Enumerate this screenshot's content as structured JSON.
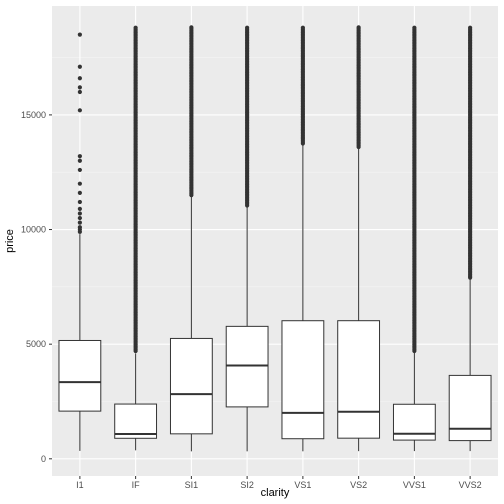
{
  "chart_data": {
    "type": "boxplot",
    "title": "",
    "xlabel": "clarity",
    "ylabel": "price",
    "categories": [
      "I1",
      "IF",
      "SI1",
      "SI2",
      "VS1",
      "VS2",
      "VVS1",
      "VVS2"
    ],
    "ylim": [
      -750,
      19750
    ],
    "yticks": [
      0,
      5000,
      10000,
      15000
    ],
    "grid": true,
    "legend": "none",
    "boxes": [
      {
        "category": "I1",
        "lower_whisker": 345,
        "q1": 2080,
        "median": 3344,
        "q3": 5161,
        "upper_whisker": 9800,
        "outliers": [
          9900,
          10000,
          10100,
          10300,
          10500,
          10700,
          10900,
          11200,
          11600,
          12000,
          12600,
          13000,
          13200,
          15200,
          16000,
          16200,
          16600,
          17100,
          18500
        ]
      },
      {
        "category": "IF",
        "lower_whisker": 369,
        "q1": 895,
        "median": 1080,
        "q3": 2388,
        "upper_whisker": 4600,
        "outliers_range": [
          4700,
          18800
        ]
      },
      {
        "category": "SI1",
        "lower_whisker": 326,
        "q1": 1089,
        "median": 2822,
        "q3": 5250,
        "upper_whisker": 11500,
        "outliers_range": [
          11500,
          18820
        ]
      },
      {
        "category": "SI2",
        "lower_whisker": 326,
        "q1": 2264,
        "median": 4072,
        "q3": 5777,
        "upper_whisker": 11050,
        "outliers_range": [
          11050,
          18800
        ]
      },
      {
        "category": "VS1",
        "lower_whisker": 327,
        "q1": 876,
        "median": 2005,
        "q3": 6023,
        "upper_whisker": 13750,
        "outliers_range": [
          13750,
          18800
        ]
      },
      {
        "category": "VS2",
        "lower_whisker": 334,
        "q1": 900,
        "median": 2054,
        "q3": 6024,
        "upper_whisker": 13600,
        "outliers_range": [
          13600,
          18820
        ]
      },
      {
        "category": "VVS1",
        "lower_whisker": 336,
        "q1": 816,
        "median": 1093,
        "q3": 2379,
        "upper_whisker": 4700,
        "outliers_range": [
          4700,
          18800
        ]
      },
      {
        "category": "VVS2",
        "lower_whisker": 336,
        "q1": 794,
        "median": 1311,
        "q3": 3638,
        "upper_whisker": 7900,
        "outliers_range": [
          7900,
          18800
        ]
      }
    ]
  }
}
